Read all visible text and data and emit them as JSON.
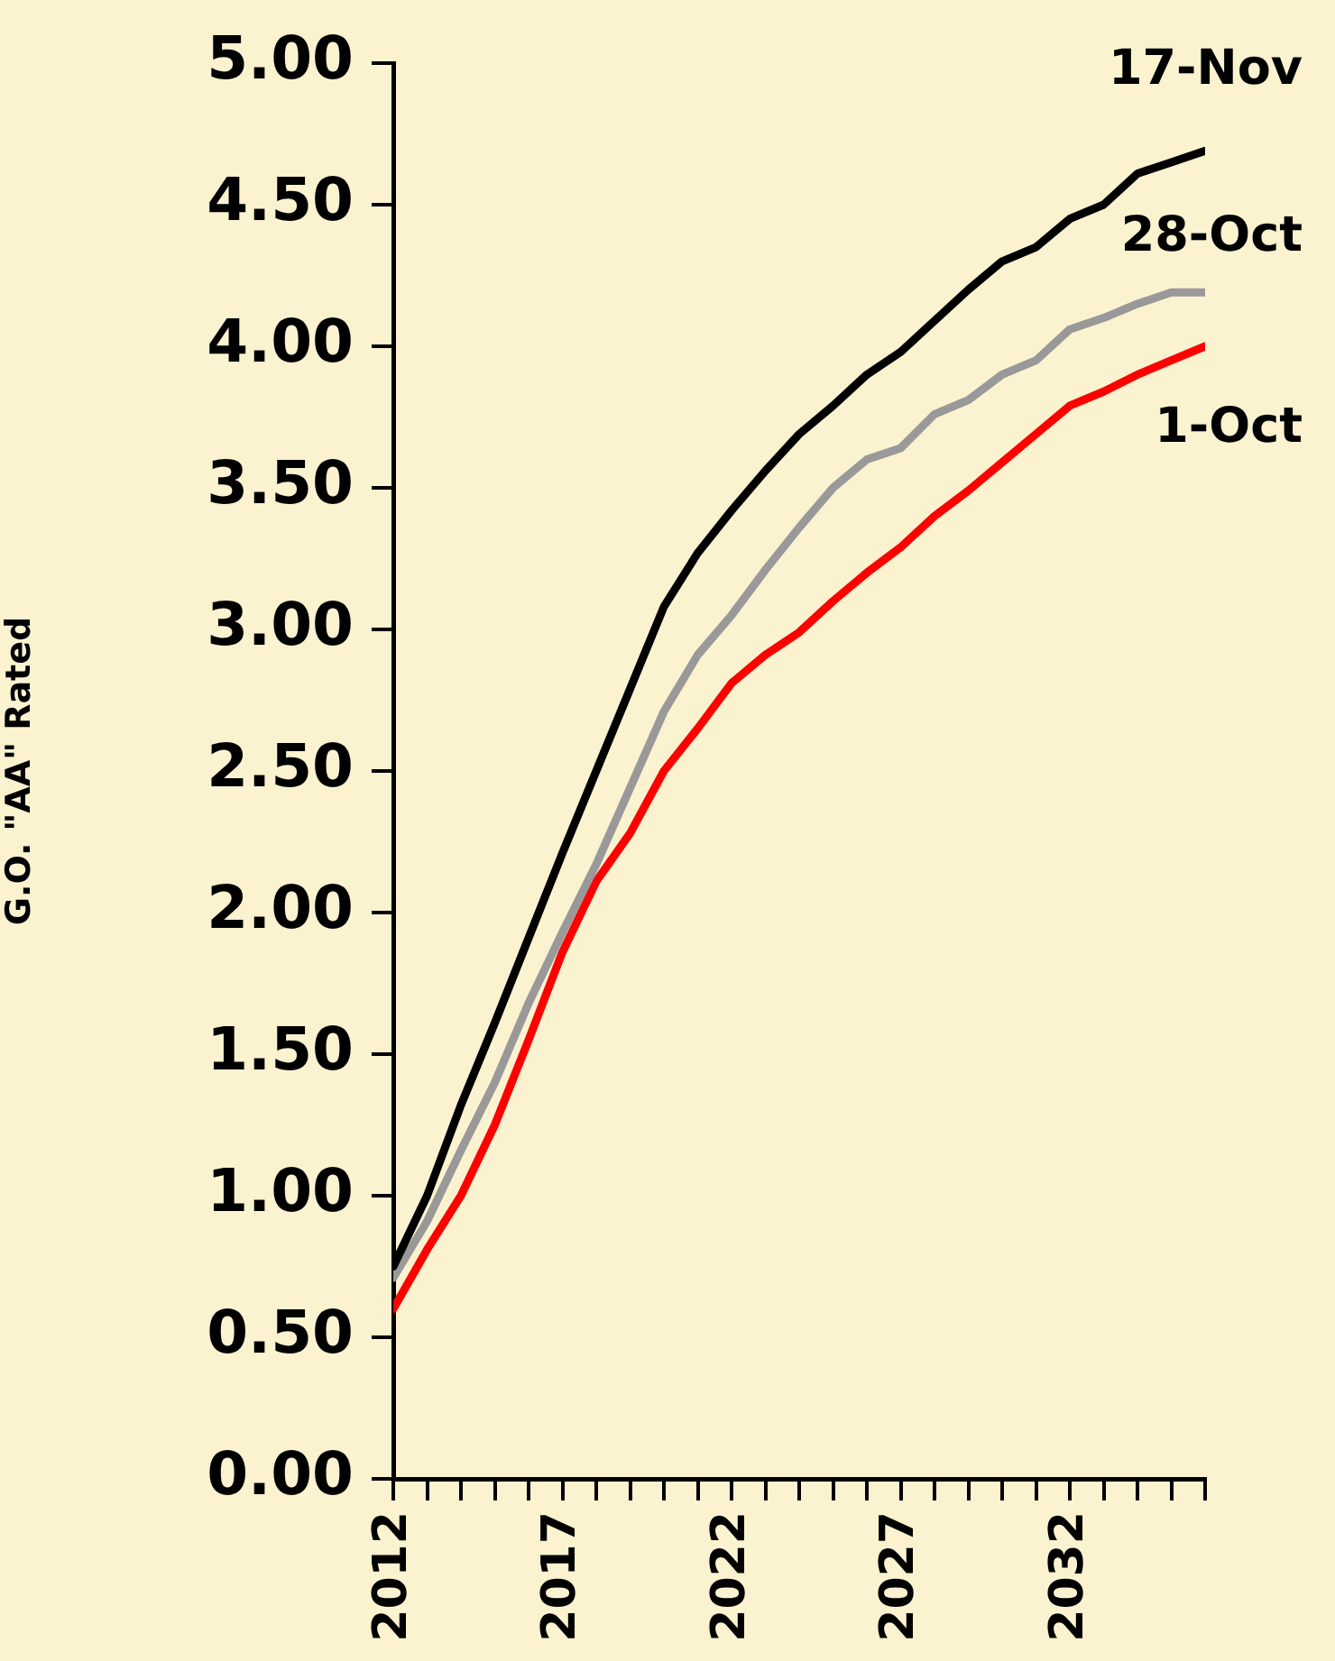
{
  "chart_data": {
    "type": "line",
    "ylabel": "G.O. \"AA\" Rated",
    "x": [
      2012,
      2013,
      2014,
      2015,
      2016,
      2017,
      2018,
      2019,
      2020,
      2021,
      2022,
      2023,
      2024,
      2025,
      2026,
      2027,
      2028,
      2029,
      2030,
      2031,
      2032,
      2033,
      2034,
      2035,
      2036
    ],
    "xlim": [
      2012,
      2036
    ],
    "xticks": [
      2012,
      {
        "value": 2013,
        "label": null
      },
      {
        "value": 2014,
        "label": null
      },
      {
        "value": 2015,
        "label": null
      },
      {
        "value": 2016,
        "label": null
      },
      2017,
      {
        "value": 2018,
        "label": null
      },
      {
        "value": 2019,
        "label": null
      },
      {
        "value": 2020,
        "label": null
      },
      {
        "value": 2021,
        "label": null
      },
      2022,
      {
        "value": 2023,
        "label": null
      },
      {
        "value": 2024,
        "label": null
      },
      {
        "value": 2025,
        "label": null
      },
      {
        "value": 2026,
        "label": null
      },
      2027,
      {
        "value": 2028,
        "label": null
      },
      {
        "value": 2029,
        "label": null
      },
      {
        "value": 2030,
        "label": null
      },
      {
        "value": 2031,
        "label": null
      },
      2032,
      {
        "value": 2033,
        "label": null
      },
      {
        "value": 2034,
        "label": null
      },
      {
        "value": 2035,
        "label": null
      },
      {
        "value": 2036,
        "label": null
      }
    ],
    "ylim": [
      0,
      5
    ],
    "yticks": [
      {
        "value": 0,
        "label": "0.00"
      },
      {
        "value": 0.5,
        "label": "0.50"
      },
      {
        "value": 1,
        "label": "1.00"
      },
      {
        "value": 1.5,
        "label": "1.50"
      },
      {
        "value": 2,
        "label": "2.00"
      },
      {
        "value": 2.5,
        "label": "2.50"
      },
      {
        "value": 3,
        "label": "3.00"
      },
      {
        "value": 3.5,
        "label": "3.50"
      },
      {
        "value": 4,
        "label": "4.00"
      },
      {
        "value": 4.5,
        "label": "4.50"
      },
      {
        "value": 5,
        "label": "5.00"
      }
    ],
    "grid": false,
    "legend": false,
    "marker": "none",
    "line_style": "solid",
    "series": [
      {
        "name": "17-Nov",
        "color": "#000000",
        "values": [
          0.75,
          1.0,
          1.32,
          1.61,
          1.91,
          2.21,
          2.5,
          2.79,
          3.08,
          3.27,
          3.42,
          3.56,
          3.69,
          3.79,
          3.9,
          3.98,
          4.09,
          4.2,
          4.3,
          4.35,
          4.45,
          4.5,
          4.61,
          4.65,
          4.69
        ]
      },
      {
        "name": "28-Oct",
        "color": "#999999",
        "values": [
          0.71,
          0.91,
          1.16,
          1.4,
          1.68,
          1.93,
          2.17,
          2.44,
          2.71,
          2.91,
          3.05,
          3.21,
          3.36,
          3.5,
          3.6,
          3.64,
          3.76,
          3.81,
          3.9,
          3.95,
          4.06,
          4.1,
          4.15,
          4.19,
          4.19
        ]
      },
      {
        "name": "1-Oct",
        "color": "#ff0000",
        "values": [
          0.6,
          0.81,
          1.0,
          1.25,
          1.55,
          1.86,
          2.11,
          2.28,
          2.5,
          2.65,
          2.81,
          2.91,
          2.99,
          3.1,
          3.2,
          3.29,
          3.4,
          3.49,
          3.59,
          3.69,
          3.79,
          3.84,
          3.9,
          3.95,
          4.0
        ]
      }
    ]
  }
}
